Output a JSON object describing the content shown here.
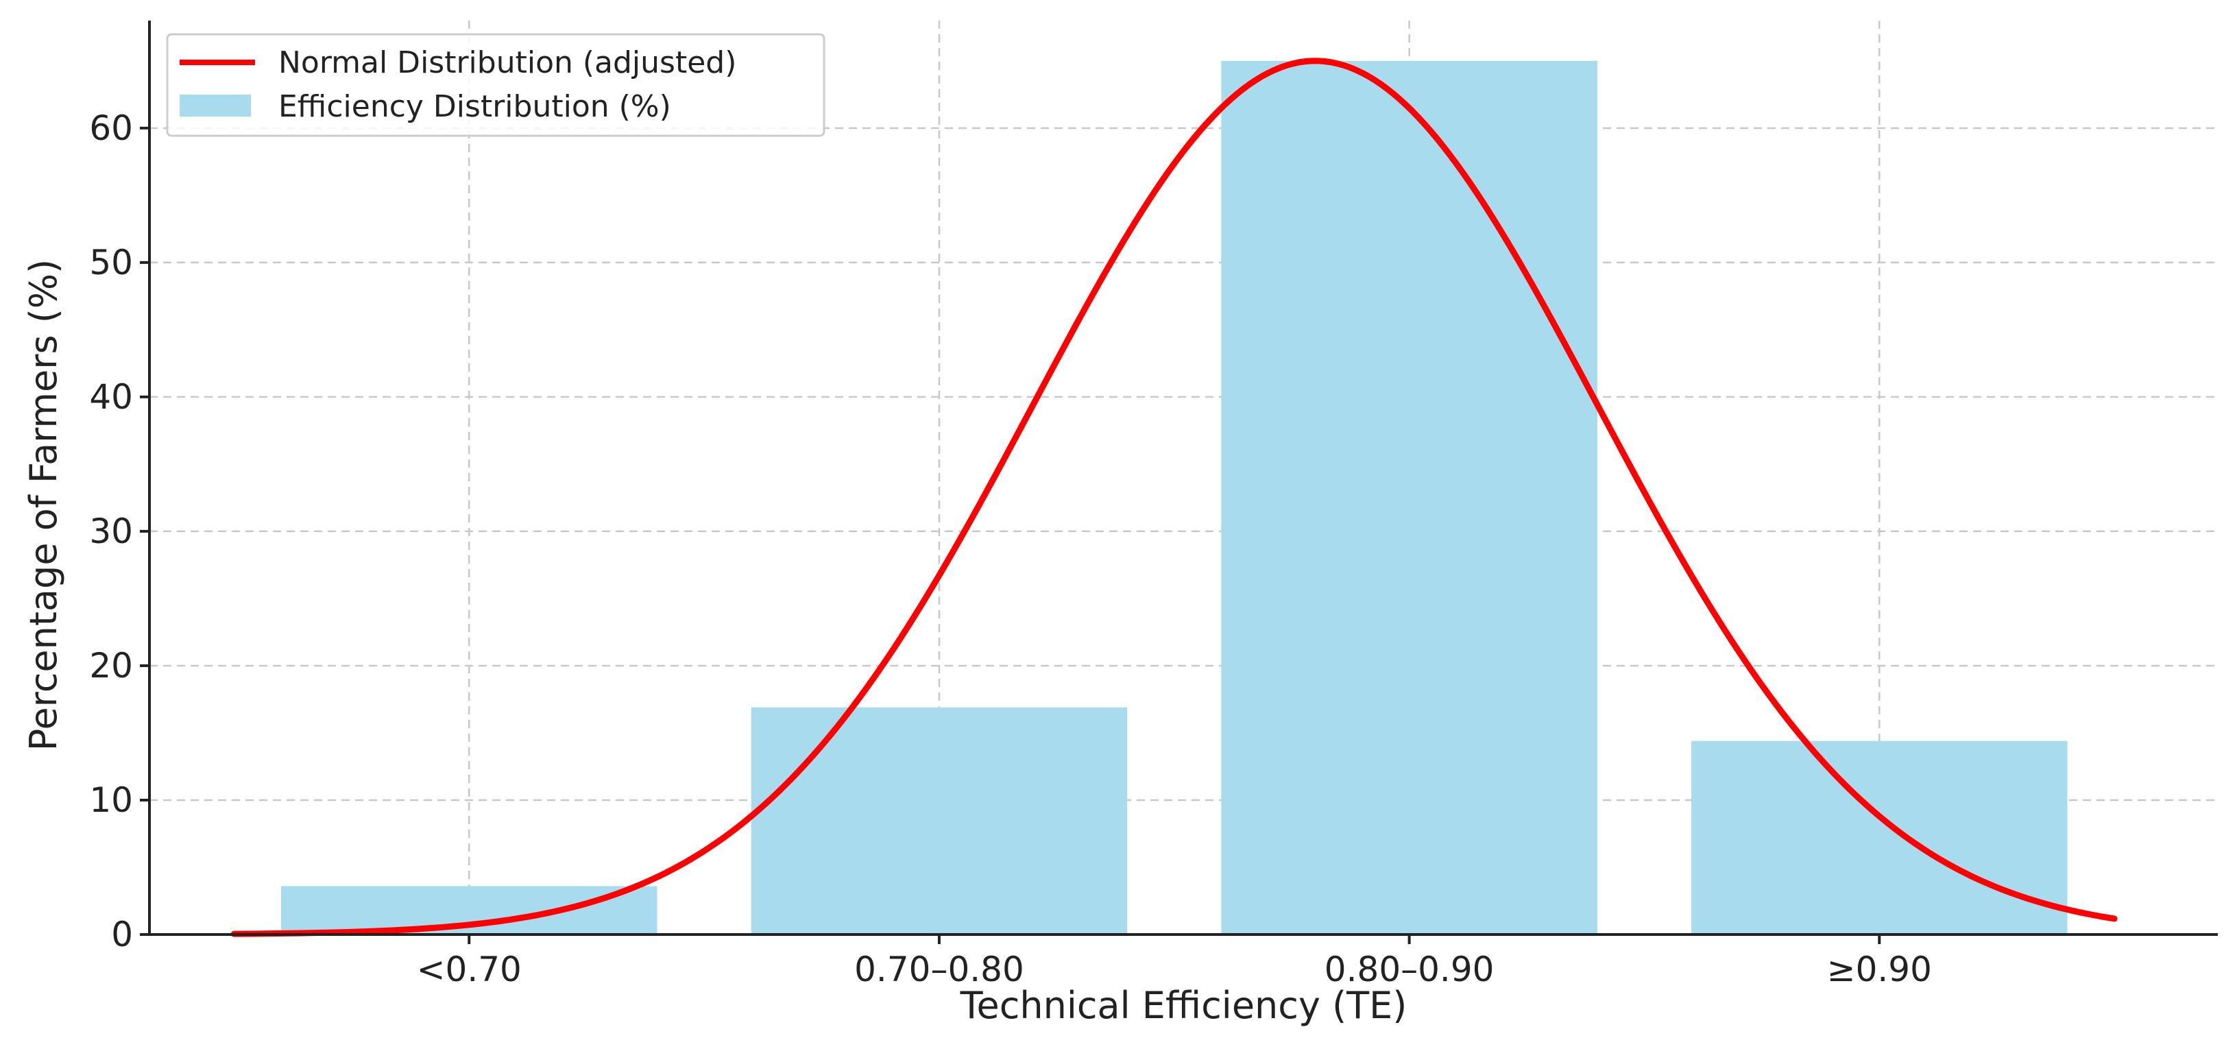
{
  "chart_data": {
    "type": "bar",
    "title": "",
    "xlabel": "Technical Efficiency (TE)",
    "ylabel": "Percentage of Farmers (%)",
    "categories": [
      "<0.70",
      "0.70–0.80",
      "0.80–0.90",
      "≥0.90"
    ],
    "values": [
      3.6,
      16.9,
      65.0,
      14.4
    ],
    "ylim": [
      0,
      68
    ],
    "yticks": [
      0,
      10,
      20,
      30,
      40,
      50,
      60
    ],
    "grid": true,
    "legend_position": "top-left",
    "series": [
      {
        "name": "Efficiency Distribution (%)",
        "type": "bar",
        "color": "#a8dbee",
        "values": [
          3.6,
          16.9,
          65.0,
          14.4
        ]
      },
      {
        "name": "Normal Distribution (adjusted)",
        "type": "line",
        "color": "#ff0000",
        "x_range": [
          -0.5,
          3.5
        ],
        "curve": {
          "mean": 1.8,
          "sd": 0.6,
          "peak": 65.0
        }
      }
    ]
  }
}
